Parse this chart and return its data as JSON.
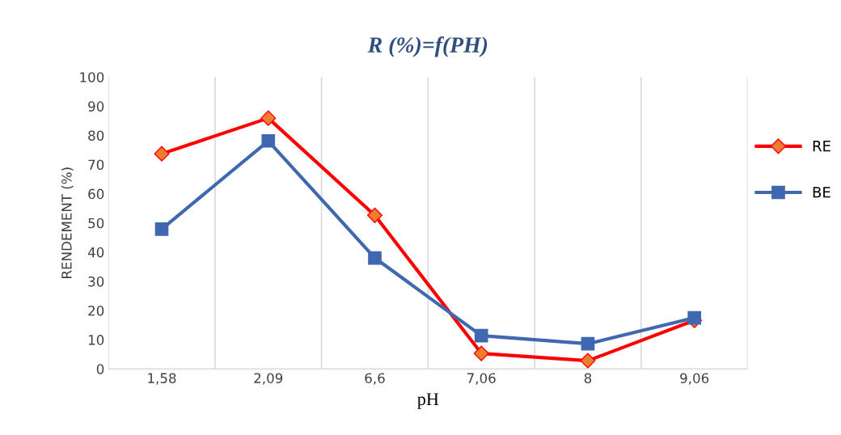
{
  "chart_data": {
    "type": "line",
    "title": "R (%)=f(PH)",
    "xlabel": "pH",
    "ylabel": "RENDEMENT (%)",
    "categories": [
      "1,58",
      "2,09",
      "6,6",
      "7,06",
      "8",
      "9,06"
    ],
    "series": [
      {
        "name": "RE",
        "color": "#ff0000",
        "marker": "diamond",
        "values": [
          73.7,
          85.9,
          52.6,
          5.3,
          2.8,
          16.6
        ]
      },
      {
        "name": "BE",
        "color": "#4068b0",
        "marker": "square",
        "values": [
          47.9,
          78.1,
          38.0,
          11.4,
          8.6,
          17.5
        ]
      }
    ],
    "ylim": [
      0,
      100
    ],
    "yticks": [
      0,
      10,
      20,
      30,
      40,
      50,
      60,
      70,
      80,
      90,
      100
    ],
    "grid": "x",
    "legend": "right",
    "line_style": "solid"
  }
}
